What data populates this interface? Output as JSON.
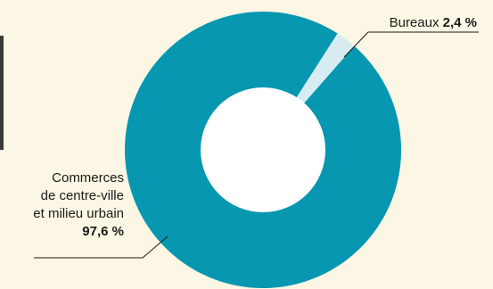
{
  "chart_data": {
    "type": "pie",
    "style": "donut",
    "title": "",
    "categories": [
      "Commerces de centre-ville et milieu urbain",
      "Bureaux"
    ],
    "values": [
      97.6,
      2.4
    ],
    "unit": "%",
    "colors": [
      "#0797b0",
      "#d6ecf1"
    ],
    "legend": "none",
    "slices": [
      {
        "label_lines": [
          "Commerces",
          "de centre-ville",
          "et milieu urbain"
        ],
        "value_text": "97,6 %",
        "color": "#0797b0"
      },
      {
        "label_lines": [
          "Bureaux"
        ],
        "value_text": "2,4 %",
        "color": "#d6ecf1"
      }
    ]
  },
  "colors": {
    "background": "#fcf6e4",
    "hole": "#ffffff",
    "leader": "#1a1a1a"
  }
}
